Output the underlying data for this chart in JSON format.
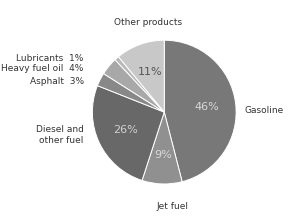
{
  "slices": [
    {
      "label": "Gasoline",
      "pct": 46,
      "color": "#787878",
      "text_color": "#d8d8d8"
    },
    {
      "label": "Jet fuel",
      "pct": 9,
      "color": "#909090",
      "text_color": "#d8d8d8"
    },
    {
      "label": "Diesel and\nother fuel",
      "pct": 26,
      "color": "#686868",
      "text_color": "#d0d0d0"
    },
    {
      "label": "Asphalt",
      "pct": 3,
      "color": "#888888",
      "text_color": "#888888"
    },
    {
      "label": "Heavy fuel oil",
      "pct": 4,
      "color": "#a8a8a8",
      "text_color": "#a8a8a8"
    },
    {
      "label": "Lubricants",
      "pct": 1,
      "color": "#b8b8b8",
      "text_color": "#b8b8b8"
    },
    {
      "label": "Other products",
      "pct": 11,
      "color": "#c8c8c8",
      "text_color": "#555555"
    }
  ],
  "show_pct_inside": [
    true,
    true,
    true,
    false,
    false,
    false,
    true
  ],
  "start_angle": 90,
  "background_color": "#ffffff",
  "figsize": [
    3.0,
    2.17
  ],
  "dpi": 100,
  "label_font_size": 6.5,
  "pct_font_size": 8
}
